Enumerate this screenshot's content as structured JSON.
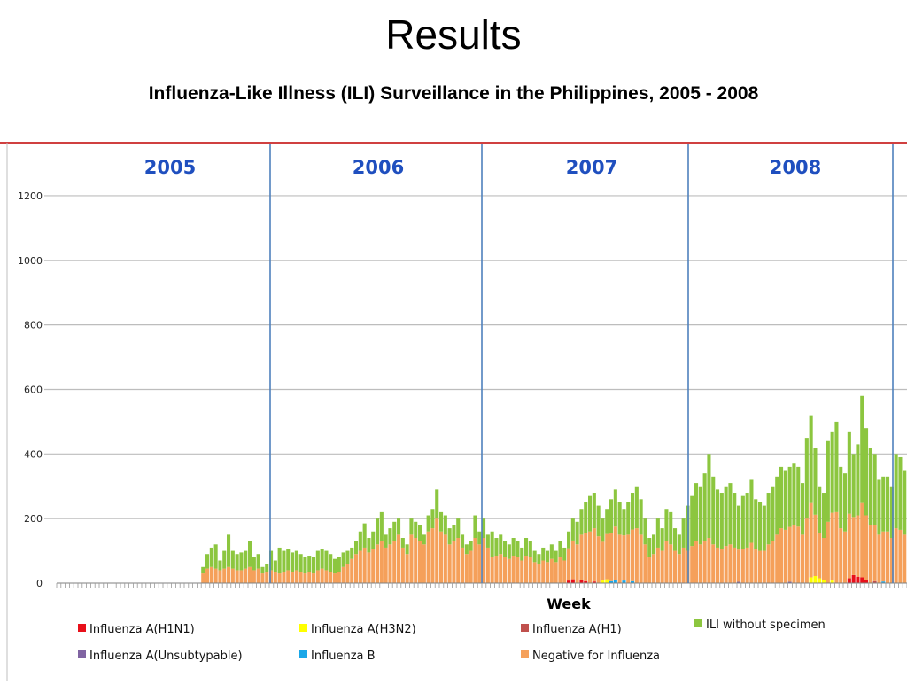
{
  "slide": {
    "title": "Results",
    "subtitle": "Influenza-Like Illness (ILI) Surveillance in the Philippines, 2005 - 2008"
  },
  "colors": {
    "ili": "#8cc63f",
    "negative": "#f5a05a",
    "h1n1": "#e8101a",
    "h3n2": "#ffff00",
    "h1": "#c0504d",
    "unsubtypable": "#8064a2",
    "flub": "#1aa7e8",
    "year_label": "#1f4fbf",
    "year_divider": "#4f81bd",
    "frame_top": "#c00000"
  },
  "chart_data": {
    "type": "bar",
    "stacked": true,
    "xlabel": "Week",
    "ylabel": "",
    "ylim": [
      0,
      1300
    ],
    "yticks": [
      0,
      200,
      400,
      600,
      800,
      1000,
      1200
    ],
    "grid": true,
    "legend_position": "bottom",
    "years": [
      "2005",
      "2006",
      "2007",
      "2008"
    ],
    "weeks_per_year": 52,
    "series": [
      {
        "key": "h1n1",
        "name": "Influenza A(H1N1)"
      },
      {
        "key": "h3n2",
        "name": "Influenza A(H3N2)"
      },
      {
        "key": "h1",
        "name": "Influenza A(H1)"
      },
      {
        "key": "ili",
        "name": "ILI without specimen"
      },
      {
        "key": "unsubtypable",
        "name": "Influenza A(Unsubtypable)"
      },
      {
        "key": "flub",
        "name": "Influenza B"
      },
      {
        "key": "negative",
        "name": "Negative for Influenza"
      }
    ],
    "totals": [
      0,
      0,
      0,
      0,
      0,
      0,
      0,
      0,
      0,
      0,
      0,
      0,
      0,
      0,
      0,
      0,
      0,
      0,
      0,
      0,
      0,
      0,
      0,
      0,
      0,
      0,
      0,
      0,
      0,
      0,
      0,
      0,
      0,
      0,
      50,
      90,
      110,
      120,
      70,
      100,
      150,
      100,
      90,
      95,
      100,
      130,
      80,
      90,
      50,
      60,
      100,
      70,
      110,
      100,
      105,
      95,
      100,
      90,
      80,
      85,
      80,
      100,
      105,
      100,
      90,
      75,
      80,
      95,
      100,
      110,
      130,
      160,
      185,
      140,
      160,
      200,
      220,
      150,
      170,
      190,
      200,
      140,
      120,
      200,
      190,
      180,
      150,
      210,
      230,
      290,
      220,
      210,
      170,
      180,
      200,
      150,
      120,
      130,
      210,
      160,
      200,
      150,
      160,
      140,
      150,
      130,
      120,
      140,
      130,
      110,
      140,
      130,
      100,
      90,
      110,
      100,
      120,
      100,
      130,
      110,
      160,
      200,
      190,
      230,
      250,
      270,
      280,
      240,
      200,
      230,
      260,
      290,
      250,
      230,
      250,
      280,
      300,
      260,
      200,
      140,
      150,
      200,
      170,
      230,
      220,
      170,
      150,
      200,
      240,
      270,
      310,
      300,
      340,
      400,
      330,
      290,
      280,
      300,
      310,
      280,
      240,
      270,
      280,
      320,
      260,
      250,
      240,
      280,
      300,
      330,
      360,
      350,
      360,
      370,
      360,
      310,
      450,
      520,
      420,
      300,
      280,
      440,
      470,
      500,
      360,
      340,
      470,
      400,
      430,
      580,
      480,
      420,
      400,
      320,
      330,
      330,
      300,
      400,
      390,
      350
    ],
    "negatives": [
      0,
      0,
      0,
      0,
      0,
      0,
      0,
      0,
      0,
      0,
      0,
      0,
      0,
      0,
      0,
      0,
      0,
      0,
      0,
      0,
      0,
      0,
      0,
      0,
      0,
      0,
      0,
      0,
      0,
      0,
      0,
      0,
      0,
      0,
      30,
      45,
      50,
      45,
      40,
      45,
      50,
      45,
      40,
      40,
      45,
      50,
      40,
      45,
      30,
      35,
      40,
      35,
      30,
      35,
      40,
      35,
      40,
      35,
      30,
      35,
      30,
      40,
      45,
      40,
      35,
      30,
      35,
      50,
      60,
      75,
      90,
      100,
      110,
      95,
      105,
      120,
      130,
      110,
      120,
      130,
      150,
      110,
      90,
      150,
      140,
      130,
      120,
      160,
      170,
      200,
      160,
      150,
      120,
      130,
      140,
      110,
      90,
      100,
      140,
      120,
      140,
      110,
      80,
      85,
      90,
      80,
      75,
      85,
      80,
      70,
      85,
      80,
      65,
      60,
      70,
      65,
      75,
      65,
      80,
      70,
      100,
      120,
      120,
      140,
      150,
      160,
      165,
      145,
      120,
      140,
      150,
      165,
      150,
      140,
      150,
      160,
      170,
      150,
      120,
      80,
      90,
      110,
      100,
      130,
      120,
      100,
      90,
      110,
      100,
      115,
      130,
      120,
      130,
      140,
      120,
      110,
      105,
      115,
      120,
      110,
      100,
      105,
      110,
      125,
      105,
      100,
      100,
      120,
      130,
      150,
      170,
      165,
      170,
      180,
      175,
      150,
      200,
      230,
      190,
      140,
      130,
      190,
      210,
      220,
      170,
      160,
      200,
      180,
      190,
      230,
      200,
      180,
      175,
      150,
      155,
      160,
      140,
      170,
      165,
      150
    ],
    "positives": [
      {
        "week": 120,
        "series": "h1n1",
        "value": 8
      },
      {
        "week": 121,
        "series": "h1n1",
        "value": 12
      },
      {
        "week": 123,
        "series": "h1n1",
        "value": 10
      },
      {
        "week": 124,
        "series": "h1n1",
        "value": 6
      },
      {
        "week": 126,
        "series": "h1n1",
        "value": 5
      },
      {
        "week": 128,
        "series": "h3n2",
        "value": 8
      },
      {
        "week": 129,
        "series": "h3n2",
        "value": 12
      },
      {
        "week": 130,
        "series": "flub",
        "value": 6
      },
      {
        "week": 131,
        "series": "flub",
        "value": 10
      },
      {
        "week": 133,
        "series": "flub",
        "value": 8
      },
      {
        "week": 135,
        "series": "flub",
        "value": 6
      },
      {
        "week": 177,
        "series": "h3n2",
        "value": 18
      },
      {
        "week": 178,
        "series": "h3n2",
        "value": 22
      },
      {
        "week": 179,
        "series": "h3n2",
        "value": 15
      },
      {
        "week": 180,
        "series": "h3n2",
        "value": 10
      },
      {
        "week": 182,
        "series": "h3n2",
        "value": 8
      },
      {
        "week": 186,
        "series": "h1n1",
        "value": 15
      },
      {
        "week": 187,
        "series": "h1n1",
        "value": 25
      },
      {
        "week": 188,
        "series": "h1n1",
        "value": 20
      },
      {
        "week": 189,
        "series": "h1n1",
        "value": 18
      },
      {
        "week": 190,
        "series": "h1n1",
        "value": 10
      },
      {
        "week": 192,
        "series": "h1",
        "value": 6
      },
      {
        "week": 194,
        "series": "flub",
        "value": 5
      },
      {
        "week": 160,
        "series": "unsubtypable",
        "value": 4
      },
      {
        "week": 172,
        "series": "unsubtypable",
        "value": 4
      },
      {
        "week": 208,
        "series": "flub",
        "value": 8
      },
      {
        "week": 210,
        "series": "flub",
        "value": 12
      },
      {
        "week": 214,
        "series": "flub",
        "value": 8
      },
      {
        "week": 220,
        "series": "flub",
        "value": 10
      },
      {
        "week": 226,
        "series": "flub",
        "value": 8
      },
      {
        "week": 232,
        "series": "flub",
        "value": 12
      },
      {
        "week": 240,
        "series": "flub",
        "value": 20
      },
      {
        "week": 241,
        "series": "flub",
        "value": 35
      },
      {
        "week": 242,
        "series": "flub",
        "value": 30
      },
      {
        "week": 243,
        "series": "flub",
        "value": 25
      },
      {
        "week": 244,
        "series": "flub",
        "value": 15
      },
      {
        "week": 246,
        "series": "h3n2",
        "value": 10
      },
      {
        "week": 248,
        "series": "h3n2",
        "value": 12
      },
      {
        "week": 250,
        "series": "flub",
        "value": 8
      },
      {
        "week": 252,
        "series": "h3n2",
        "value": 10
      }
    ]
  }
}
